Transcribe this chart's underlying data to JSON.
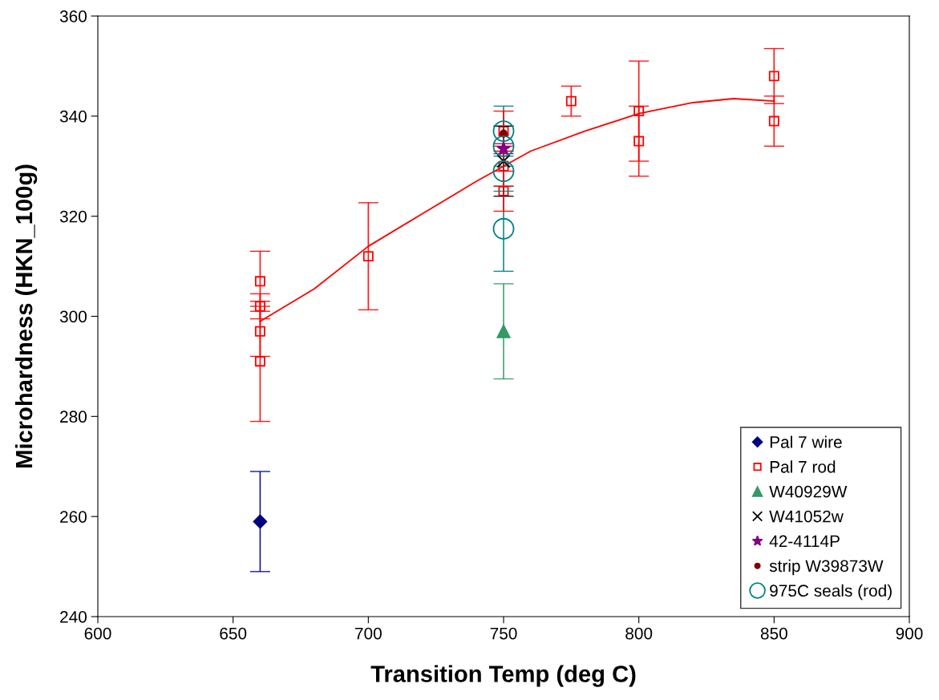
{
  "chart_data": {
    "type": "scatter",
    "xlabel": "Transition Temp (deg C)",
    "ylabel": "Microhardness (HKN_100g)",
    "xlim": [
      600,
      900
    ],
    "xticks": [
      600,
      650,
      700,
      750,
      800,
      850,
      900
    ],
    "ylim": [
      240,
      360
    ],
    "yticks": [
      240,
      260,
      280,
      300,
      320,
      340,
      360
    ],
    "grid": false,
    "legend": "bottom right",
    "series": [
      {
        "name": "Pal 7 wire",
        "color": "#000080",
        "marker": "diamond",
        "x": [
          660
        ],
        "values": [
          259
        ],
        "errors": [
          10
        ]
      },
      {
        "name": "Pal 7 rod",
        "color": "#ff0000",
        "marker": "square",
        "x": [
          660,
          660,
          660,
          660,
          700,
          750,
          750,
          750,
          775,
          800,
          800,
          850,
          850
        ],
        "values": [
          307,
          302,
          297,
          291,
          312,
          337,
          330,
          325,
          343,
          341,
          335,
          348,
          339
        ],
        "errors": [
          6,
          2.5,
          5,
          12,
          10.7,
          4,
          4,
          4,
          3,
          10,
          7,
          5.5,
          5
        ]
      },
      {
        "name": "W40929W",
        "color": "#339966",
        "marker": "triangle",
        "x": [
          750
        ],
        "values": [
          297
        ],
        "errors": [
          9.5
        ]
      },
      {
        "name": "W41052w",
        "color": "#000000",
        "marker": "cross",
        "x": [
          750
        ],
        "values": [
          331
        ],
        "errors": [
          7
        ]
      },
      {
        "name": "42-4114P",
        "color": "#800080",
        "marker": "star",
        "x": [
          750
        ],
        "values": [
          333.5
        ],
        "errors": [
          1
        ]
      },
      {
        "name": "strip W39873W",
        "color": "#800000",
        "marker": "circle",
        "x": [
          750
        ],
        "values": [
          336.5
        ]
      },
      {
        "name": "975C seals (rod)",
        "color": "#008080",
        "marker": "open_circle",
        "x": [
          750,
          750,
          750,
          750
        ],
        "values": [
          337,
          334,
          329,
          317.5
        ],
        "errors": [
          5,
          4,
          4,
          8.5
        ]
      },
      {
        "type": "line",
        "color": "#ff0000",
        "marker": "none",
        "x": [
          660,
          680,
          700,
          720,
          740,
          750,
          760,
          780,
          800,
          820,
          835,
          850
        ],
        "values": [
          299,
          305.5,
          314,
          320.5,
          327,
          330,
          333,
          337,
          340.5,
          342.7,
          343.5,
          343
        ]
      }
    ]
  }
}
